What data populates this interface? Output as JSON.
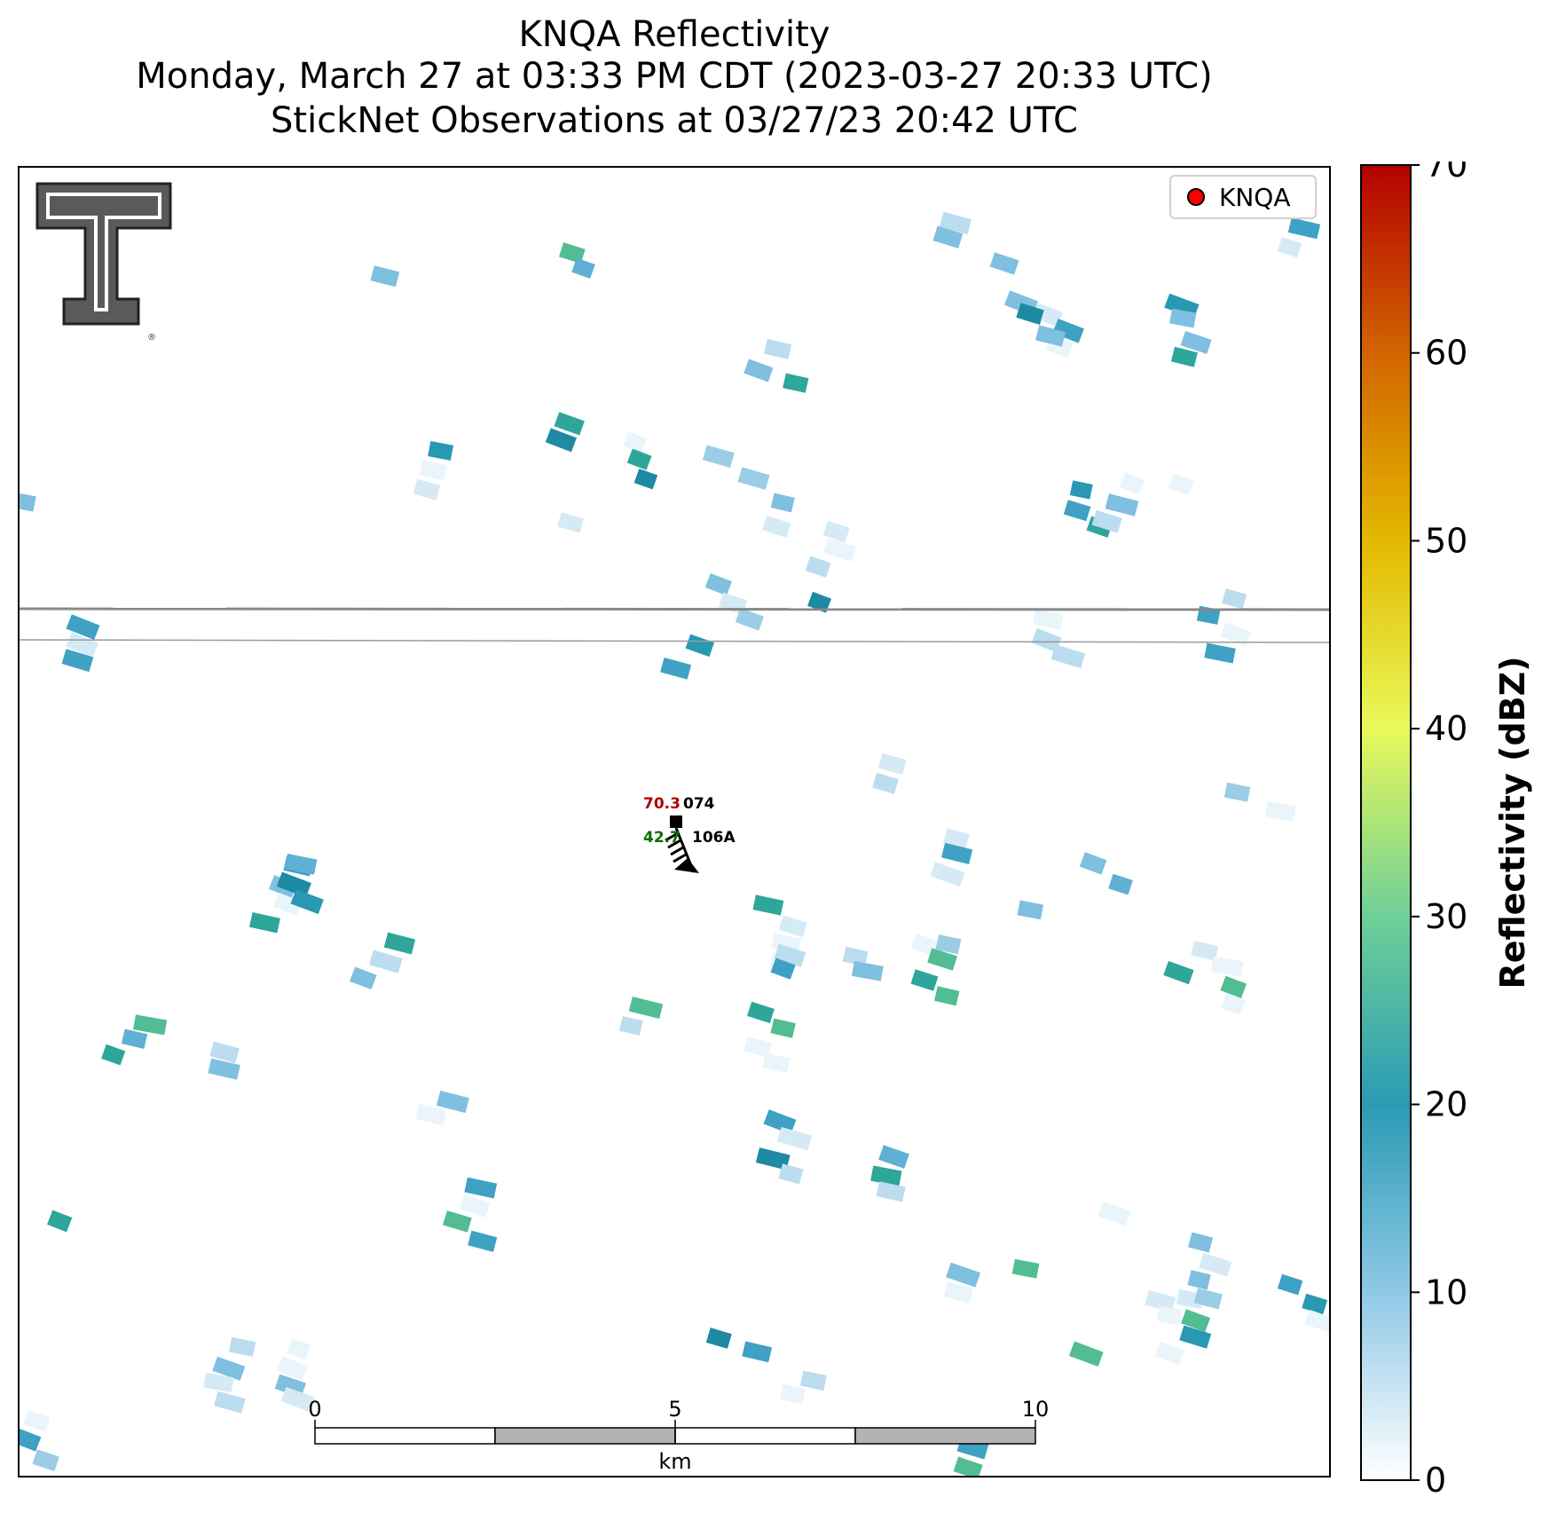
{
  "title": {
    "line1": "KNQA Reflectivity",
    "line2": "Monday, March 27 at 03:33 PM CDT (2023-03-27 20:33 UTC)",
    "line3": "StickNet Observations at 03/27/23 20:42 UTC"
  },
  "legend": {
    "label": "KNQA",
    "marker_color": "#ff0000"
  },
  "station": {
    "id": "106A",
    "temperature": "70.3",
    "dewpoint": "42.7",
    "pressure_code": "074",
    "temperature_color": "#b00000",
    "dewpoint_color": "#007000"
  },
  "scale_bar": {
    "unit": "km",
    "ticks": [
      "0",
      "5",
      "10"
    ]
  },
  "colorbar": {
    "label": "Reflectivity (dBZ)",
    "ticks": [
      "0",
      "10",
      "20",
      "30",
      "40",
      "50",
      "60",
      "70"
    ],
    "min": 0,
    "max": 70,
    "colors": [
      "#ffffff",
      "#8fc8e6",
      "#2a9bb4",
      "#6fcf97",
      "#e9f95a",
      "#e3b800",
      "#d26400",
      "#b40000"
    ]
  },
  "logo": {
    "text": "T"
  }
}
